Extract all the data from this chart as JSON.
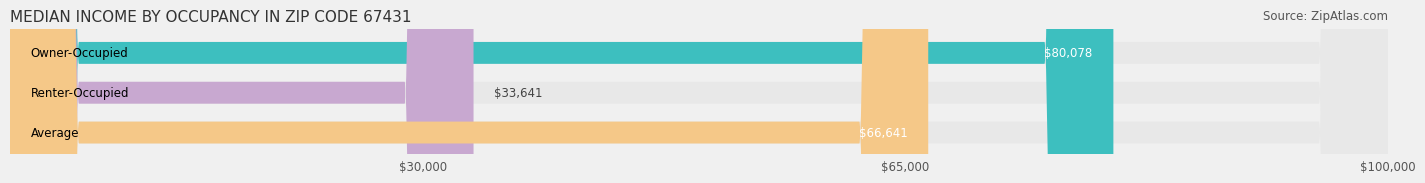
{
  "title": "MEDIAN INCOME BY OCCUPANCY IN ZIP CODE 67431",
  "source": "Source: ZipAtlas.com",
  "categories": [
    "Owner-Occupied",
    "Renter-Occupied",
    "Average"
  ],
  "values": [
    80078,
    33641,
    66641
  ],
  "bar_colors": [
    "#3dbfbf",
    "#c8a8d0",
    "#f5c888"
  ],
  "value_labels": [
    "$80,078",
    "$33,641",
    "$66,641"
  ],
  "xlim": [
    0,
    100000
  ],
  "xticks": [
    30000,
    65000,
    100000
  ],
  "xtick_labels": [
    "$30,000",
    "$65,000",
    "$100,000"
  ],
  "bar_height": 0.55,
  "background_color": "#f0f0f0",
  "bar_bg_color": "#e8e8e8",
  "title_fontsize": 11,
  "label_fontsize": 8.5,
  "value_fontsize": 8.5,
  "tick_fontsize": 8.5,
  "source_fontsize": 8.5
}
